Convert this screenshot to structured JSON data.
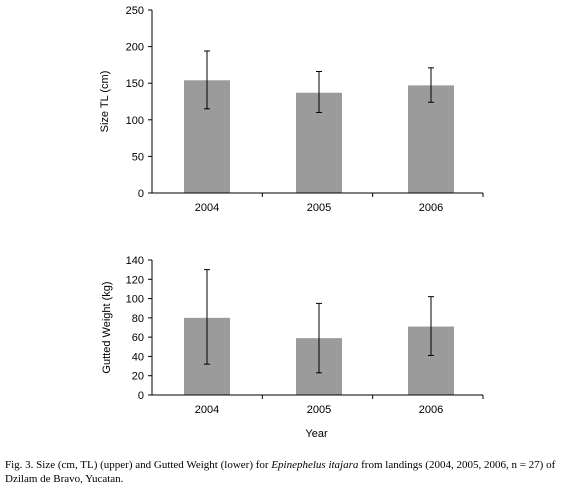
{
  "chart_data": [
    {
      "type": "bar",
      "categories": [
        "2004",
        "2005",
        "2006"
      ],
      "values": [
        154,
        137,
        147
      ],
      "error_low": [
        115,
        110,
        124
      ],
      "error_high": [
        194,
        166,
        171
      ],
      "ylabel": "Size TL (cm)",
      "xlabel": "",
      "ylim": [
        0,
        250
      ],
      "yticks": [
        "0",
        "50",
        "100",
        "150",
        "200",
        "250"
      ],
      "bar_color": "#9b9b9b",
      "grid": false
    },
    {
      "type": "bar",
      "categories": [
        "2004",
        "2005",
        "2006"
      ],
      "values": [
        80,
        59,
        71
      ],
      "error_low": [
        32,
        23,
        41
      ],
      "error_high": [
        130,
        95,
        102
      ],
      "ylabel": "Gutted Weight (kg)",
      "xlabel": "Year",
      "ylim": [
        0,
        140
      ],
      "yticks": [
        "0",
        "20",
        "40",
        "60",
        "80",
        "100",
        "120",
        "140"
      ],
      "bar_color": "#9b9b9b",
      "grid": false
    }
  ],
  "caption": {
    "before": "Fig. 3. Size (cm, TL) (upper) and Gutted Weight (lower) for ",
    "species": "Epinephelus itajara",
    "after": " from landings (2004, 2005, 2006, n = 27) of Dzilam de Bravo, Yucatan."
  }
}
